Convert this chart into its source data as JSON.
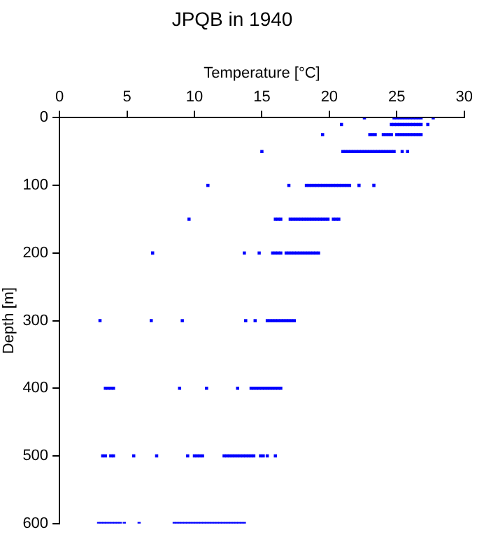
{
  "chart_data": {
    "type": "scatter",
    "title": "JPQB in 1940",
    "xlabel": "Temperature [°C]",
    "ylabel": "Depth [m]",
    "xlim": [
      0,
      30
    ],
    "xticks": [
      0,
      5,
      10,
      15,
      20,
      25,
      30
    ],
    "ylim": [
      600,
      0
    ],
    "yticks": [
      0,
      100,
      200,
      300,
      400,
      500,
      600
    ],
    "grid": false,
    "marker": "square",
    "series": [
      {
        "color": "#0000ff",
        "x": [
          22.6,
          24.8,
          25.0,
          25.2,
          25.4,
          25.6,
          25.8,
          26.0,
          26.2,
          26.4,
          26.6,
          26.8,
          27.7,
          20.9,
          24.6,
          24.8,
          25.0,
          25.2,
          25.4,
          25.6,
          25.8,
          26.0,
          26.2,
          26.4,
          26.6,
          26.8,
          27.3,
          19.5,
          23.0,
          23.2,
          23.4,
          24.0,
          24.2,
          24.4,
          24.6,
          25.0,
          25.2,
          25.4,
          25.6,
          25.8,
          26.0,
          26.2,
          26.4,
          26.6,
          26.8,
          15.0,
          21.0,
          21.2,
          21.4,
          21.6,
          21.8,
          22.0,
          22.2,
          22.4,
          22.6,
          22.8,
          23.0,
          23.2,
          23.4,
          23.6,
          23.8,
          24.0,
          24.2,
          24.4,
          24.6,
          24.8,
          25.4,
          25.8,
          11.0,
          17.0,
          18.3,
          18.5,
          18.7,
          18.9,
          19.1,
          19.3,
          19.5,
          19.7,
          19.9,
          20.1,
          20.3,
          20.5,
          20.7,
          20.9,
          21.1,
          21.3,
          21.5,
          22.2,
          23.3,
          9.6,
          16.0,
          16.2,
          16.4,
          17.1,
          17.3,
          17.5,
          17.7,
          17.9,
          18.1,
          18.3,
          18.5,
          18.7,
          18.9,
          19.1,
          19.3,
          19.5,
          19.7,
          19.9,
          20.3,
          20.5,
          20.7,
          6.9,
          13.7,
          14.8,
          15.8,
          16.0,
          16.2,
          16.4,
          16.8,
          17.0,
          17.2,
          17.4,
          17.6,
          17.8,
          18.0,
          18.2,
          18.4,
          18.6,
          18.8,
          19.0,
          19.2,
          3.0,
          6.8,
          9.1,
          13.8,
          14.5,
          15.4,
          15.6,
          15.8,
          16.0,
          16.2,
          16.4,
          16.6,
          16.8,
          17.0,
          17.2,
          17.4,
          3.4,
          3.6,
          3.8,
          4.0,
          8.9,
          10.9,
          13.2,
          14.2,
          14.4,
          14.6,
          14.8,
          15.0,
          15.2,
          15.4,
          15.6,
          15.8,
          16.0,
          16.2,
          16.4,
          3.2,
          3.4,
          3.8,
          4.0,
          5.5,
          7.2,
          9.5,
          10.0,
          10.2,
          10.4,
          10.6,
          12.2,
          12.4,
          12.6,
          12.8,
          13.0,
          13.2,
          13.4,
          13.6,
          13.8,
          14.0,
          14.2,
          14.4,
          14.9,
          15.1,
          15.4,
          16.0,
          2.9,
          3.1,
          3.3,
          3.5,
          3.7,
          3.9,
          4.1,
          4.3,
          4.5,
          4.8,
          5.9,
          8.5,
          8.7,
          8.9,
          9.1,
          9.3,
          9.5,
          9.7,
          9.9,
          10.1,
          10.3,
          10.5,
          10.7,
          10.9,
          11.1,
          11.3,
          11.5,
          11.7,
          11.9,
          12.1,
          12.3,
          12.5,
          12.7,
          12.9,
          13.1,
          13.3,
          13.5,
          13.7
        ],
        "values": [
          0,
          0,
          0,
          0,
          0,
          0,
          0,
          0,
          0,
          0,
          0,
          0,
          0,
          10,
          10,
          10,
          10,
          10,
          10,
          10,
          10,
          10,
          10,
          10,
          10,
          10,
          10,
          25,
          25,
          25,
          25,
          25,
          25,
          25,
          25,
          25,
          25,
          25,
          25,
          25,
          25,
          25,
          25,
          25,
          25,
          50,
          50,
          50,
          50,
          50,
          50,
          50,
          50,
          50,
          50,
          50,
          50,
          50,
          50,
          50,
          50,
          50,
          50,
          50,
          50,
          50,
          50,
          50,
          100,
          100,
          100,
          100,
          100,
          100,
          100,
          100,
          100,
          100,
          100,
          100,
          100,
          100,
          100,
          100,
          100,
          100,
          100,
          100,
          100,
          150,
          150,
          150,
          150,
          150,
          150,
          150,
          150,
          150,
          150,
          150,
          150,
          150,
          150,
          150,
          150,
          150,
          150,
          150,
          150,
          150,
          150,
          200,
          200,
          200,
          200,
          200,
          200,
          200,
          200,
          200,
          200,
          200,
          200,
          200,
          200,
          200,
          200,
          200,
          200,
          200,
          200,
          300,
          300,
          300,
          300,
          300,
          300,
          300,
          300,
          300,
          300,
          300,
          300,
          300,
          300,
          300,
          300,
          400,
          400,
          400,
          400,
          400,
          400,
          400,
          400,
          400,
          400,
          400,
          400,
          400,
          400,
          400,
          400,
          400,
          400,
          400,
          500,
          500,
          500,
          500,
          500,
          500,
          500,
          500,
          500,
          500,
          500,
          500,
          500,
          500,
          500,
          500,
          500,
          500,
          500,
          500,
          500,
          500,
          500,
          500,
          500,
          500,
          500,
          600,
          600,
          600,
          600,
          600,
          600,
          600,
          600,
          600,
          600,
          600,
          600,
          600,
          600,
          600,
          600,
          600,
          600,
          600,
          600,
          600,
          600,
          600,
          600,
          600,
          600,
          600,
          600,
          600,
          600,
          600,
          600,
          600,
          600,
          600,
          600,
          600,
          600
        ]
      }
    ]
  }
}
